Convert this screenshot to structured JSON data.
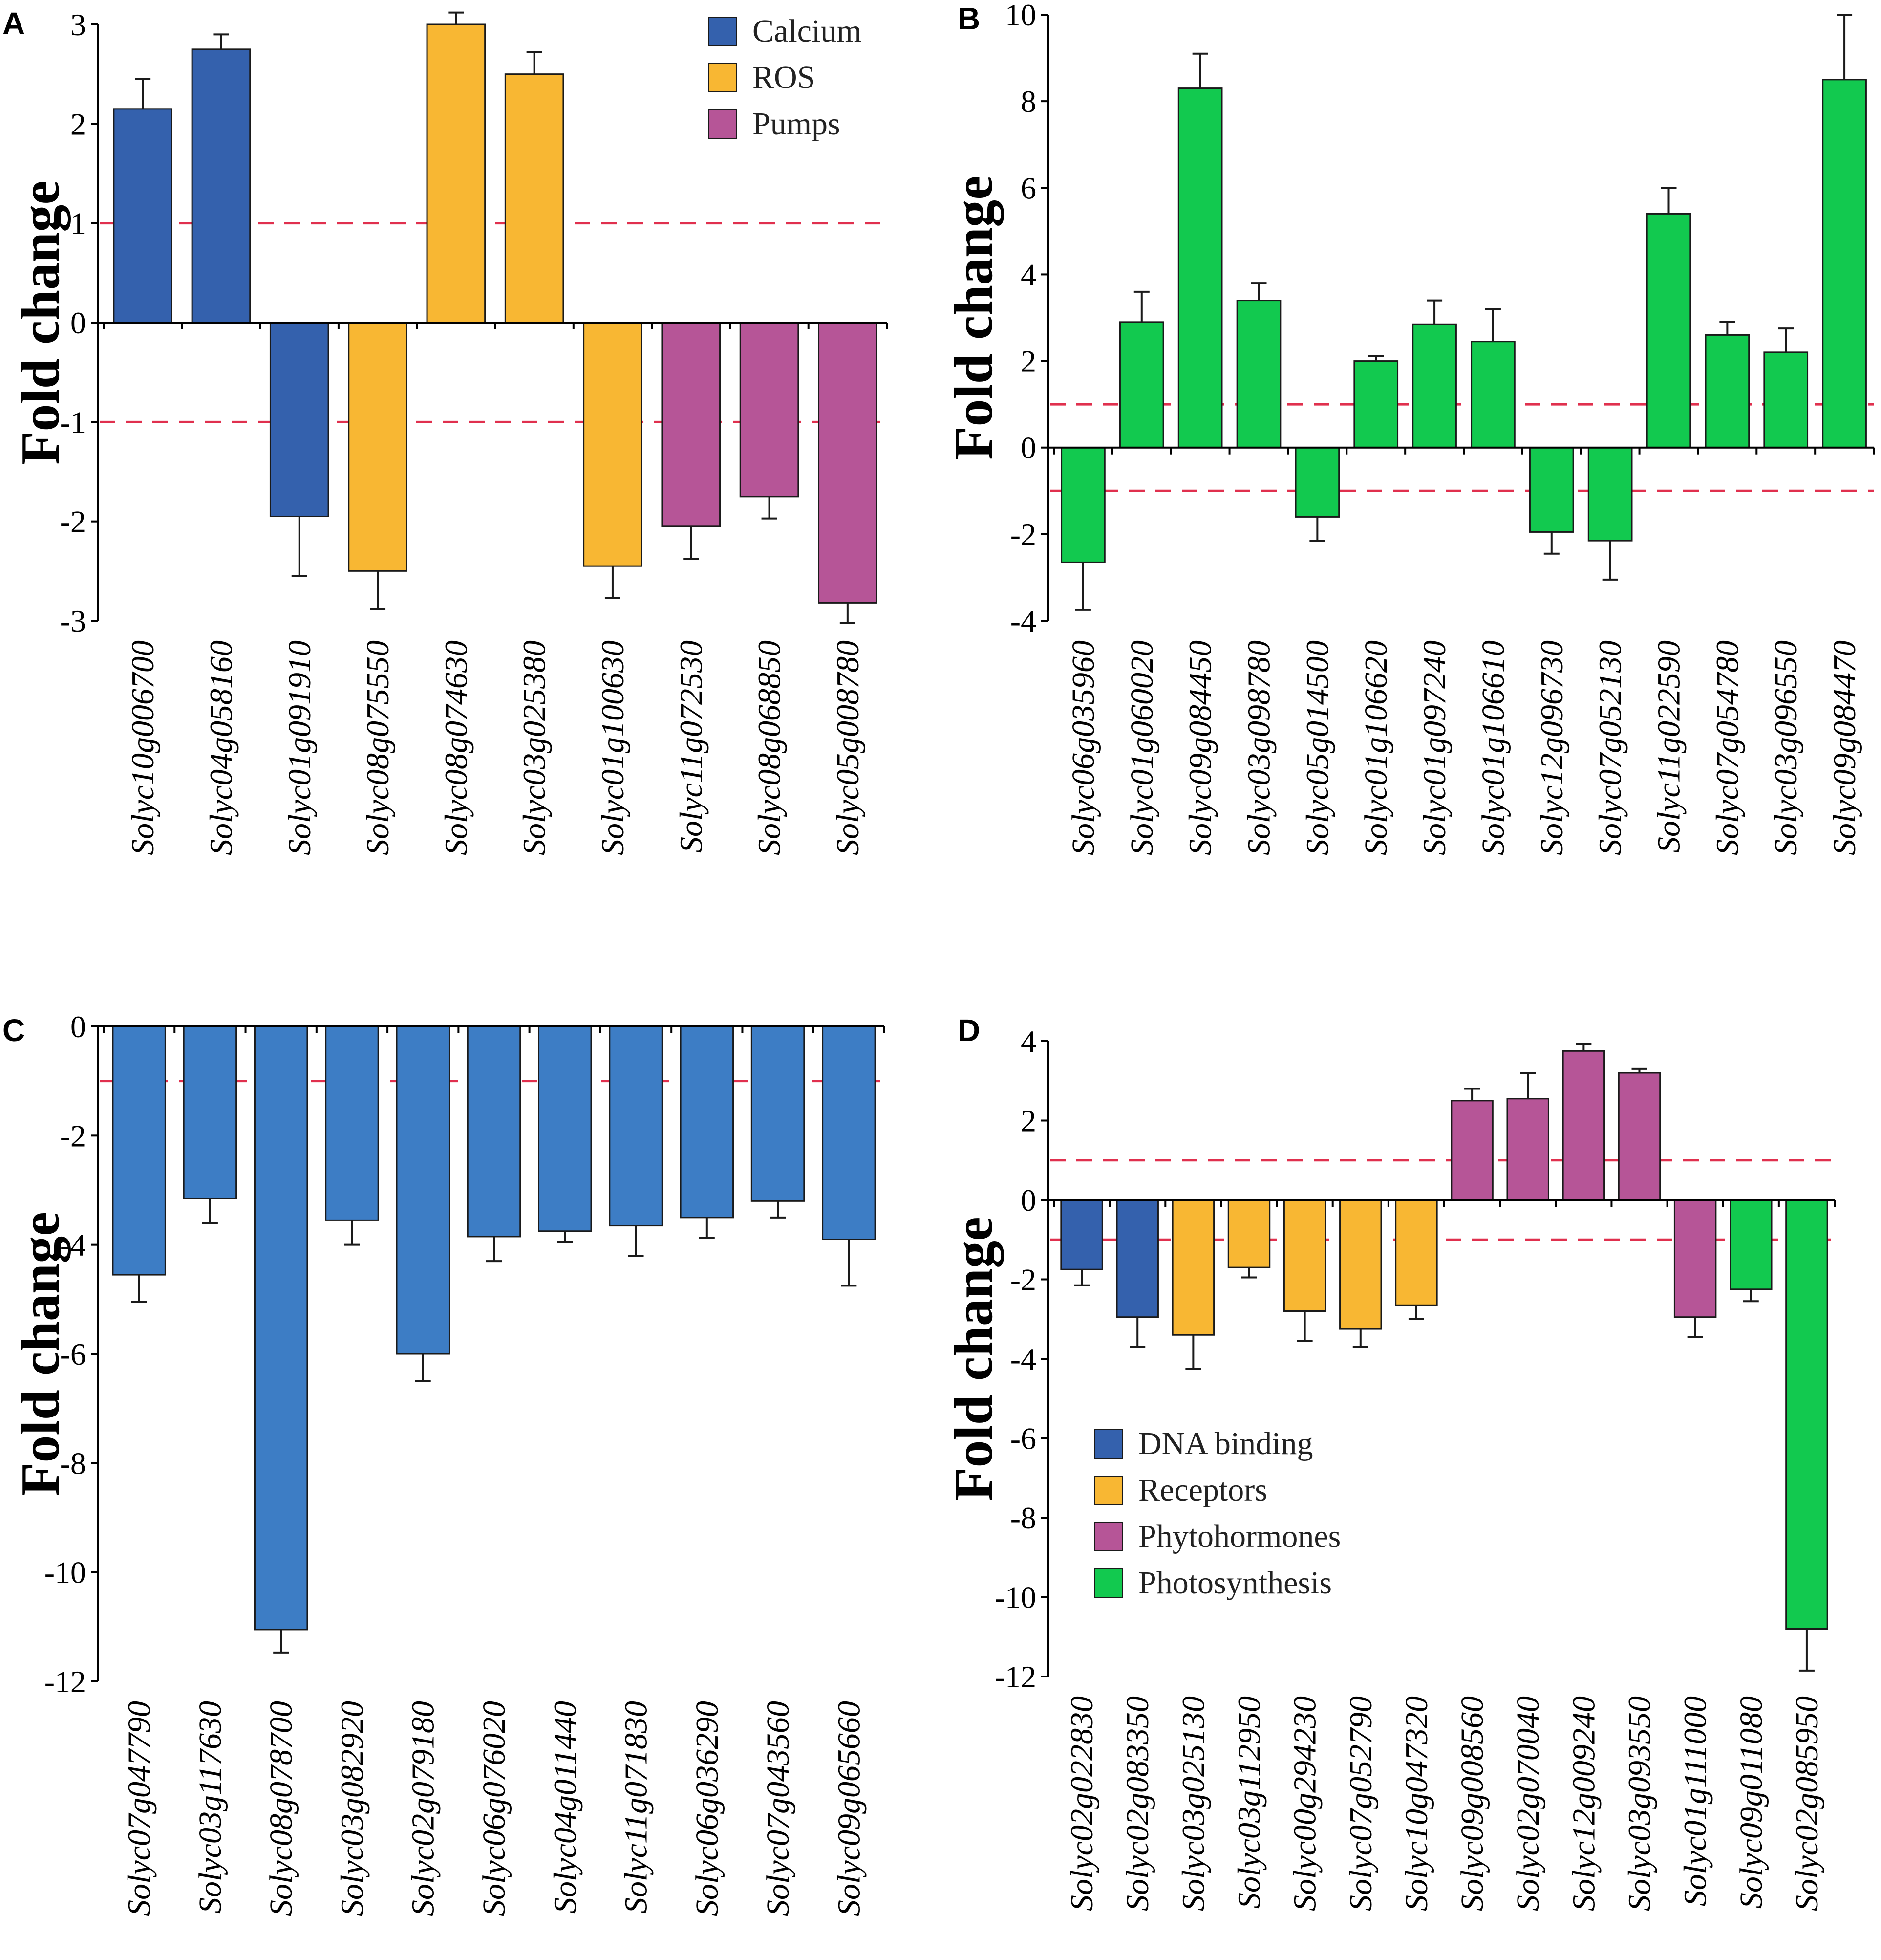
{
  "colors": {
    "calcium": "#3461ad",
    "ros": "#f8b733",
    "pumps": "#b65597",
    "photosynthesis": "#12c94f",
    "blue_c": "#3d7dc5",
    "threshold": "#e0304e",
    "axis": "#000000"
  },
  "chart_data": [
    {
      "panel": "A",
      "type": "bar",
      "ylabel": "Fold change",
      "ylim": [
        -3,
        3
      ],
      "yticks": [
        3,
        2,
        1,
        0,
        -1,
        -2,
        -3
      ],
      "threshold_lines": [
        1,
        -1
      ],
      "legend_position": "top-right",
      "legend": [
        {
          "label": "Calcium",
          "group": "calcium"
        },
        {
          "label": "ROS",
          "group": "ros"
        },
        {
          "label": "Pumps",
          "group": "pumps"
        }
      ],
      "categories": [
        "Solyc10g006700",
        "Solyc04g058160",
        "Solyc01g091910",
        "Solyc08g075550",
        "Solyc08g074630",
        "Solyc03g025380",
        "Solyc01g100630",
        "Solyc11g072530",
        "Solyc08g068850",
        "Solyc05g008780"
      ],
      "values": [
        2.15,
        2.75,
        -1.95,
        -2.5,
        3.0,
        2.5,
        -2.45,
        -2.05,
        -1.75,
        -2.82
      ],
      "errors": [
        0.3,
        0.15,
        0.6,
        0.38,
        0.12,
        0.22,
        0.32,
        0.33,
        0.22,
        0.2
      ],
      "groups": [
        "calcium",
        "calcium",
        "calcium",
        "ros",
        "ros",
        "ros",
        "ros",
        "pumps",
        "pumps",
        "pumps"
      ]
    },
    {
      "panel": "B",
      "type": "bar",
      "ylabel": "Fold change",
      "ylim": [
        -4,
        10
      ],
      "yticks": [
        10,
        8,
        6,
        4,
        2,
        0,
        -2,
        -4
      ],
      "threshold_lines": [
        1,
        -1
      ],
      "legend": [],
      "categories": [
        "Solyc06g035960",
        "Solyc01g060020",
        "Solyc09g084450",
        "Solyc03g098780",
        "Solyc05g014500",
        "Solyc01g106620",
        "Solyc01g097240",
        "Solyc01g106610",
        "Solyc12g096730",
        "Solyc07g052130",
        "Solyc11g022590",
        "Solyc07g054780",
        "Solyc03g096550",
        "Solyc09g084470"
      ],
      "values": [
        -2.65,
        2.9,
        8.3,
        3.4,
        -1.6,
        2.0,
        2.85,
        2.45,
        -1.95,
        -2.15,
        5.4,
        2.6,
        2.2,
        8.5
      ],
      "errors": [
        1.1,
        0.7,
        0.8,
        0.4,
        0.55,
        0.12,
        0.55,
        0.75,
        0.5,
        0.9,
        0.6,
        0.3,
        0.55,
        1.5
      ],
      "groups": [
        "photosynthesis",
        "photosynthesis",
        "photosynthesis",
        "photosynthesis",
        "photosynthesis",
        "photosynthesis",
        "photosynthesis",
        "photosynthesis",
        "photosynthesis",
        "photosynthesis",
        "photosynthesis",
        "photosynthesis",
        "photosynthesis",
        "photosynthesis"
      ]
    },
    {
      "panel": "C",
      "type": "bar",
      "ylabel": "Fold change",
      "ylim": [
        -12,
        0
      ],
      "yticks": [
        0,
        -2,
        -4,
        -6,
        -8,
        -10,
        -12
      ],
      "threshold_lines": [
        -1
      ],
      "legend": [],
      "categories": [
        "Solyc07g047790",
        "Solyc03g117630",
        "Solyc08g078700",
        "Solyc03g082920",
        "Solyc02g079180",
        "Solyc06g076020",
        "Solyc04g011440",
        "Solyc11g071830",
        "Solyc06g036290",
        "Solyc07g043560",
        "Solyc09g065660"
      ],
      "values": [
        -4.55,
        -3.15,
        -11.05,
        -3.55,
        -6.0,
        -3.85,
        -3.75,
        -3.65,
        -3.5,
        -3.2,
        -3.9
      ],
      "errors": [
        0.5,
        0.45,
        0.42,
        0.45,
        0.5,
        0.45,
        0.2,
        0.55,
        0.37,
        0.3,
        0.85
      ],
      "groups": [
        "blue_c",
        "blue_c",
        "blue_c",
        "blue_c",
        "blue_c",
        "blue_c",
        "blue_c",
        "blue_c",
        "blue_c",
        "blue_c",
        "blue_c"
      ]
    },
    {
      "panel": "D",
      "type": "bar",
      "ylabel": "Fold change",
      "ylim": [
        -12,
        4
      ],
      "yticks": [
        4,
        2,
        0,
        -2,
        -4,
        -6,
        -8,
        -10,
        -12
      ],
      "threshold_lines": [
        1,
        -1
      ],
      "legend_position": "bottom-left",
      "legend": [
        {
          "label": "DNA binding",
          "group": "calcium"
        },
        {
          "label": "Receptors",
          "group": "ros"
        },
        {
          "label": "Phytohormones",
          "group": "pumps"
        },
        {
          "label": "Photosynthesis",
          "group": "photosynthesis"
        }
      ],
      "categories": [
        "Solyc02g022830",
        "Solyc02g083350",
        "Solyc03g025130",
        "Solyc03g112950",
        "Solyc00g294230",
        "Solyc07g052790",
        "Solyc10g047320",
        "Solyc09g008560",
        "Solyc02g070040",
        "Solyc12g009240",
        "Solyc03g093550",
        "Solyc01g111000",
        "Solyc09g011080",
        "Solyc02g085950"
      ],
      "values": [
        -1.75,
        -2.95,
        -3.4,
        -1.7,
        -2.8,
        -3.25,
        -2.65,
        2.5,
        2.55,
        3.75,
        3.2,
        -2.95,
        -2.25,
        -10.8
      ],
      "errors": [
        0.4,
        0.75,
        0.85,
        0.25,
        0.75,
        0.45,
        0.35,
        0.3,
        0.65,
        0.18,
        0.1,
        0.5,
        0.3,
        1.05
      ],
      "groups": [
        "calcium",
        "calcium",
        "ros",
        "ros",
        "ros",
        "ros",
        "ros",
        "pumps",
        "pumps",
        "pumps",
        "pumps",
        "pumps",
        "photosynthesis",
        "photosynthesis"
      ]
    }
  ]
}
